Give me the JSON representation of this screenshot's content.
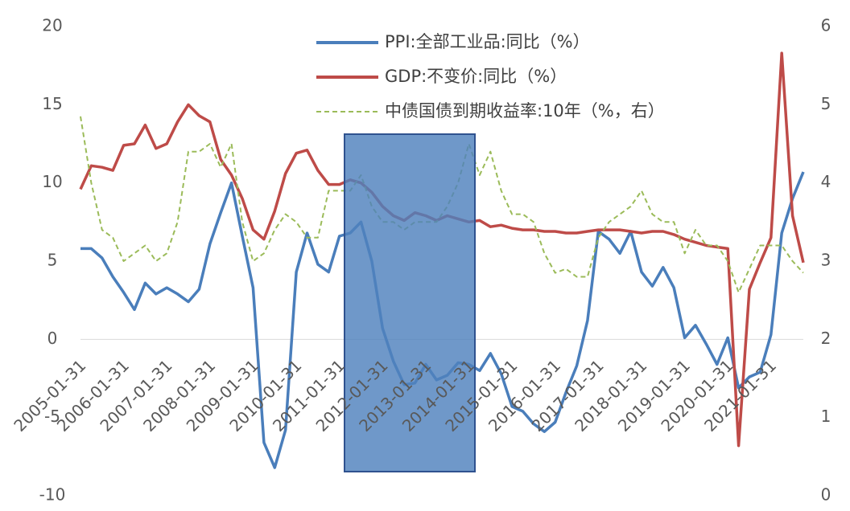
{
  "chart_data": {
    "type": "line",
    "categories": [
      "2005-01-31",
      null,
      null,
      null,
      "2006-01-31",
      null,
      null,
      null,
      "2007-01-31",
      null,
      null,
      null,
      "2008-01-31",
      null,
      null,
      null,
      "2009-01-31",
      null,
      null,
      null,
      "2010-01-31",
      null,
      null,
      null,
      "2011-01-31",
      null,
      null,
      null,
      "2012-01-31",
      null,
      null,
      null,
      "2013-01-31",
      null,
      null,
      null,
      "2014-01-31",
      null,
      null,
      null,
      "2015-01-31",
      null,
      null,
      null,
      "2016-01-31",
      null,
      null,
      null,
      "2017-01-31",
      null,
      null,
      null,
      "2018-01-31",
      null,
      null,
      null,
      "2019-01-31",
      null,
      null,
      null,
      "2020-01-31",
      null,
      null,
      null,
      "2021-01-31",
      null,
      null,
      null
    ],
    "series": [
      {
        "name": "PPI:全部工业品:同比（%）",
        "color": "#4a7ebb",
        "style": "solid",
        "values": [
          5.8,
          5.8,
          5.2,
          4.0,
          3.0,
          1.9,
          3.6,
          2.9,
          3.3,
          2.9,
          2.4,
          3.2,
          6.1,
          8.1,
          10.0,
          6.6,
          3.3,
          -6.6,
          -8.2,
          -5.8,
          4.3,
          6.8,
          4.8,
          4.3,
          6.6,
          6.8,
          7.5,
          5.0,
          0.7,
          -1.4,
          -2.9,
          -2.8,
          -1.6,
          -2.6,
          -2.3,
          -1.5,
          -1.6,
          -2.0,
          -0.9,
          -2.2,
          -4.3,
          -4.6,
          -5.4,
          -5.9,
          -5.3,
          -3.4,
          -1.7,
          1.2,
          6.9,
          6.4,
          5.5,
          6.9,
          4.3,
          3.4,
          4.6,
          3.3,
          0.1,
          0.9,
          -0.3,
          -1.6,
          0.1,
          -3.1,
          -2.4,
          -2.1,
          0.3,
          6.8,
          9.0,
          10.7
        ]
      },
      {
        "name": "GDP:不变价:同比（%）",
        "color": "#be4b48",
        "style": "solid",
        "values": [
          9.6,
          11.1,
          11.0,
          10.8,
          12.4,
          12.5,
          13.7,
          12.2,
          12.5,
          13.9,
          15.0,
          14.3,
          13.9,
          11.5,
          10.5,
          9.0,
          7.0,
          6.4,
          8.2,
          10.6,
          11.9,
          12.1,
          10.8,
          9.9,
          9.9,
          10.2,
          10.0,
          9.4,
          8.5,
          7.9,
          7.6,
          8.1,
          7.9,
          7.6,
          7.9,
          7.7,
          7.5,
          7.6,
          7.2,
          7.3,
          7.1,
          7.0,
          7.0,
          6.9,
          6.9,
          6.8,
          6.8,
          6.9,
          7.0,
          7.0,
          7.0,
          6.9,
          6.8,
          6.9,
          6.9,
          6.7,
          6.4,
          6.2,
          6.0,
          5.9,
          5.8,
          -6.8,
          3.2,
          4.9,
          6.5,
          18.3,
          7.9,
          4.9
        ]
      },
      {
        "name": "中债国债到期收益率:10年（%，右）",
        "color": "#9bbb59",
        "style": "dashed",
        "axis": "y2",
        "values": [
          4.85,
          4.0,
          3.4,
          3.3,
          3.0,
          3.1,
          3.2,
          3.0,
          3.1,
          3.5,
          4.4,
          4.4,
          4.5,
          4.2,
          4.5,
          3.5,
          3.0,
          3.1,
          3.4,
          3.6,
          3.5,
          3.3,
          3.3,
          3.9,
          3.9,
          3.9,
          4.1,
          3.7,
          3.5,
          3.5,
          3.4,
          3.5,
          3.5,
          3.5,
          3.7,
          4.0,
          4.5,
          4.1,
          4.4,
          3.9,
          3.6,
          3.6,
          3.5,
          3.1,
          2.85,
          2.9,
          2.8,
          2.8,
          3.3,
          3.5,
          3.6,
          3.7,
          3.9,
          3.6,
          3.5,
          3.5,
          3.1,
          3.4,
          3.2,
          3.2,
          3.0,
          2.6,
          2.9,
          3.2,
          3.2,
          3.2,
          3.0,
          2.85
        ]
      }
    ],
    "ylim": [
      -10,
      20
    ],
    "yticks": [
      -10,
      -5,
      0,
      5,
      10,
      15,
      20
    ],
    "y2lim": [
      0,
      6
    ],
    "y2ticks": [
      0,
      1,
      2,
      3,
      4,
      5,
      6
    ],
    "grid": false,
    "legend": "top"
  }
}
